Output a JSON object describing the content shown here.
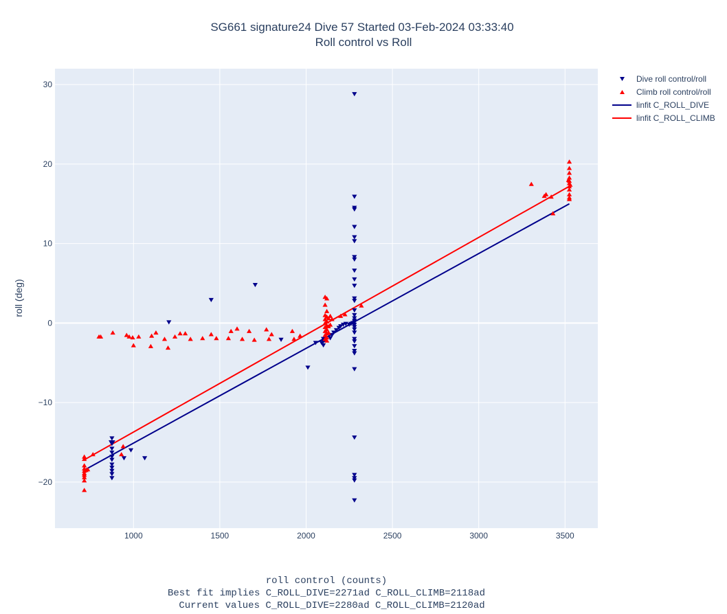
{
  "chart_data": {
    "type": "scatter",
    "title": "SG661 signature24 Dive 57 Started 03-Feb-2024 03:33:40",
    "subtitle": "Roll control vs Roll",
    "xlabel": "roll control (counts)",
    "xlabel_notes": [
      "Best fit implies C_ROLL_DIVE=2271ad C_ROLL_CLIMB=2118ad",
      "Current values C_ROLL_DIVE=2280ad C_ROLL_CLIMB=2120ad"
    ],
    "ylabel": "roll (deg)",
    "xlim": [
      545,
      3690
    ],
    "ylim": [
      -25.8,
      32
    ],
    "x_ticks": [
      1000,
      1500,
      2000,
      2500,
      3000,
      3500
    ],
    "y_ticks": [
      -20,
      -10,
      0,
      10,
      20,
      30
    ],
    "x_tick_labels": [
      "1000",
      "1500",
      "2000",
      "2500",
      "3000",
      "3500"
    ],
    "y_tick_labels": [
      "−20",
      "−10",
      "0",
      "10",
      "20",
      "30"
    ],
    "grid": true,
    "legend_position": "right",
    "colors": {
      "plot_bg": "#e5ecf6",
      "dive": "#00008b",
      "climb": "#ff0000",
      "grid": "#ffffff"
    },
    "series": [
      {
        "name": "Dive roll control/roll",
        "kind": "markers",
        "marker": "triangle-down",
        "color": "#00008b",
        "points": [
          [
            875,
            -14.5
          ],
          [
            875,
            -15.2
          ],
          [
            875,
            -15.8
          ],
          [
            875,
            -16.3
          ],
          [
            875,
            -16.8
          ],
          [
            875,
            -17.2
          ],
          [
            875,
            -17.8
          ],
          [
            875,
            -18.2
          ],
          [
            875,
            -18.6
          ],
          [
            875,
            -19.0
          ],
          [
            875,
            -19.5
          ],
          [
            870,
            -15.0
          ],
          [
            880,
            -15.0
          ],
          [
            945,
            -17.0
          ],
          [
            985,
            -16.0
          ],
          [
            1065,
            -17.0
          ],
          [
            1205,
            0.1
          ],
          [
            1450,
            2.9
          ],
          [
            1705,
            4.8
          ],
          [
            1855,
            -2.1
          ],
          [
            2010,
            -5.6
          ],
          [
            2055,
            -2.5
          ],
          [
            2090,
            -2.5
          ],
          [
            2100,
            -2.0
          ],
          [
            2100,
            -2.3
          ],
          [
            2100,
            -2.8
          ],
          [
            2110,
            -2.2
          ],
          [
            2140,
            -1.9
          ],
          [
            2150,
            -1.5
          ],
          [
            2160,
            -1.2
          ],
          [
            2175,
            -0.9
          ],
          [
            2190,
            -0.6
          ],
          [
            2200,
            -0.4
          ],
          [
            2215,
            -0.2
          ],
          [
            2230,
            -0.1
          ],
          [
            2250,
            -0.2
          ],
          [
            2260,
            -0.1
          ],
          [
            2270,
            0.0
          ],
          [
            2280,
            28.8
          ],
          [
            2280,
            15.9
          ],
          [
            2280,
            14.5
          ],
          [
            2280,
            14.3
          ],
          [
            2280,
            12.1
          ],
          [
            2280,
            10.8
          ],
          [
            2280,
            10.3
          ],
          [
            2280,
            8.3
          ],
          [
            2280,
            8.0
          ],
          [
            2280,
            6.6
          ],
          [
            2280,
            5.5
          ],
          [
            2280,
            4.7
          ],
          [
            2280,
            3.1
          ],
          [
            2280,
            2.8
          ],
          [
            2280,
            1.6
          ],
          [
            2280,
            1.0
          ],
          [
            2280,
            0.6
          ],
          [
            2280,
            0.3
          ],
          [
            2280,
            0.1
          ],
          [
            2280,
            -0.2
          ],
          [
            2280,
            -0.5
          ],
          [
            2280,
            -0.8
          ],
          [
            2280,
            -1.2
          ],
          [
            2280,
            -2.0
          ],
          [
            2280,
            -2.3
          ],
          [
            2280,
            -2.9
          ],
          [
            2280,
            -3.5
          ],
          [
            2280,
            -3.8
          ],
          [
            2280,
            -5.8
          ],
          [
            2280,
            -14.4
          ],
          [
            2280,
            -19.1
          ],
          [
            2280,
            -19.5
          ],
          [
            2280,
            -19.8
          ],
          [
            2280,
            -22.3
          ]
        ]
      },
      {
        "name": "Climb roll control/roll",
        "kind": "markers",
        "marker": "triangle-up",
        "color": "#ff0000",
        "points": [
          [
            715,
            -16.8
          ],
          [
            715,
            -17.1
          ],
          [
            715,
            -17.9
          ],
          [
            715,
            -18.3
          ],
          [
            715,
            -18.6
          ],
          [
            715,
            -18.9
          ],
          [
            715,
            -19.1
          ],
          [
            715,
            -19.4
          ],
          [
            715,
            -19.8
          ],
          [
            715,
            -21.0
          ],
          [
            725,
            -18.5
          ],
          [
            735,
            -18.4
          ],
          [
            765,
            -16.5
          ],
          [
            800,
            -1.7
          ],
          [
            810,
            -1.7
          ],
          [
            880,
            -1.2
          ],
          [
            930,
            -16.5
          ],
          [
            940,
            -15.5
          ],
          [
            960,
            -1.5
          ],
          [
            975,
            -1.7
          ],
          [
            995,
            -1.8
          ],
          [
            1000,
            -2.8
          ],
          [
            1030,
            -1.7
          ],
          [
            1100,
            -2.9
          ],
          [
            1105,
            -1.6
          ],
          [
            1130,
            -1.2
          ],
          [
            1180,
            -2.0
          ],
          [
            1200,
            -3.1
          ],
          [
            1240,
            -1.7
          ],
          [
            1270,
            -1.3
          ],
          [
            1300,
            -1.3
          ],
          [
            1330,
            -2.0
          ],
          [
            1400,
            -1.9
          ],
          [
            1450,
            -1.4
          ],
          [
            1480,
            -1.9
          ],
          [
            1550,
            -1.9
          ],
          [
            1565,
            -1.0
          ],
          [
            1600,
            -0.7
          ],
          [
            1630,
            -2.0
          ],
          [
            1670,
            -1.0
          ],
          [
            1700,
            -2.1
          ],
          [
            1770,
            -0.8
          ],
          [
            1785,
            -2.0
          ],
          [
            1800,
            -1.4
          ],
          [
            1920,
            -1.0
          ],
          [
            1930,
            -2.0
          ],
          [
            1965,
            -1.6
          ],
          [
            2110,
            3.3
          ],
          [
            2110,
            2.3
          ],
          [
            2110,
            1.0
          ],
          [
            2110,
            0.5
          ],
          [
            2110,
            0.0
          ],
          [
            2110,
            -0.5
          ],
          [
            2110,
            -1.0
          ],
          [
            2110,
            -1.5
          ],
          [
            2110,
            -2.0
          ],
          [
            2120,
            3.1
          ],
          [
            2120,
            1.5
          ],
          [
            2120,
            0.8
          ],
          [
            2120,
            0.2
          ],
          [
            2120,
            -0.3
          ],
          [
            2120,
            -0.8
          ],
          [
            2120,
            -1.3
          ],
          [
            2120,
            -1.8
          ],
          [
            2120,
            -2.2
          ],
          [
            2130,
            0.6
          ],
          [
            2130,
            -0.4
          ],
          [
            2130,
            -1.2
          ],
          [
            2140,
            0.9
          ],
          [
            2140,
            -0.2
          ],
          [
            2150,
            0.5
          ],
          [
            2200,
            0.9
          ],
          [
            2225,
            1.1
          ],
          [
            2320,
            2.2
          ],
          [
            3305,
            17.5
          ],
          [
            3380,
            16.0
          ],
          [
            3390,
            16.2
          ],
          [
            3420,
            15.9
          ],
          [
            3430,
            13.8
          ],
          [
            3525,
            20.3
          ],
          [
            3525,
            19.5
          ],
          [
            3525,
            18.9
          ],
          [
            3525,
            18.3
          ],
          [
            3525,
            17.9
          ],
          [
            3525,
            17.6
          ],
          [
            3525,
            17.2
          ],
          [
            3525,
            16.8
          ],
          [
            3525,
            16.2
          ],
          [
            3525,
            15.8
          ],
          [
            3525,
            15.6
          ],
          [
            3520,
            18.0
          ],
          [
            3530,
            17.4
          ]
        ]
      },
      {
        "name": "linfit C_ROLL_DIVE",
        "kind": "line",
        "color": "#00008b",
        "points": [
          [
            715,
            -18.5
          ],
          [
            3525,
            15.0
          ]
        ]
      },
      {
        "name": "linfit C_ROLL_CLIMB",
        "kind": "line",
        "color": "#ff0000",
        "points": [
          [
            715,
            -17.2
          ],
          [
            3525,
            17.2
          ]
        ]
      }
    ]
  }
}
